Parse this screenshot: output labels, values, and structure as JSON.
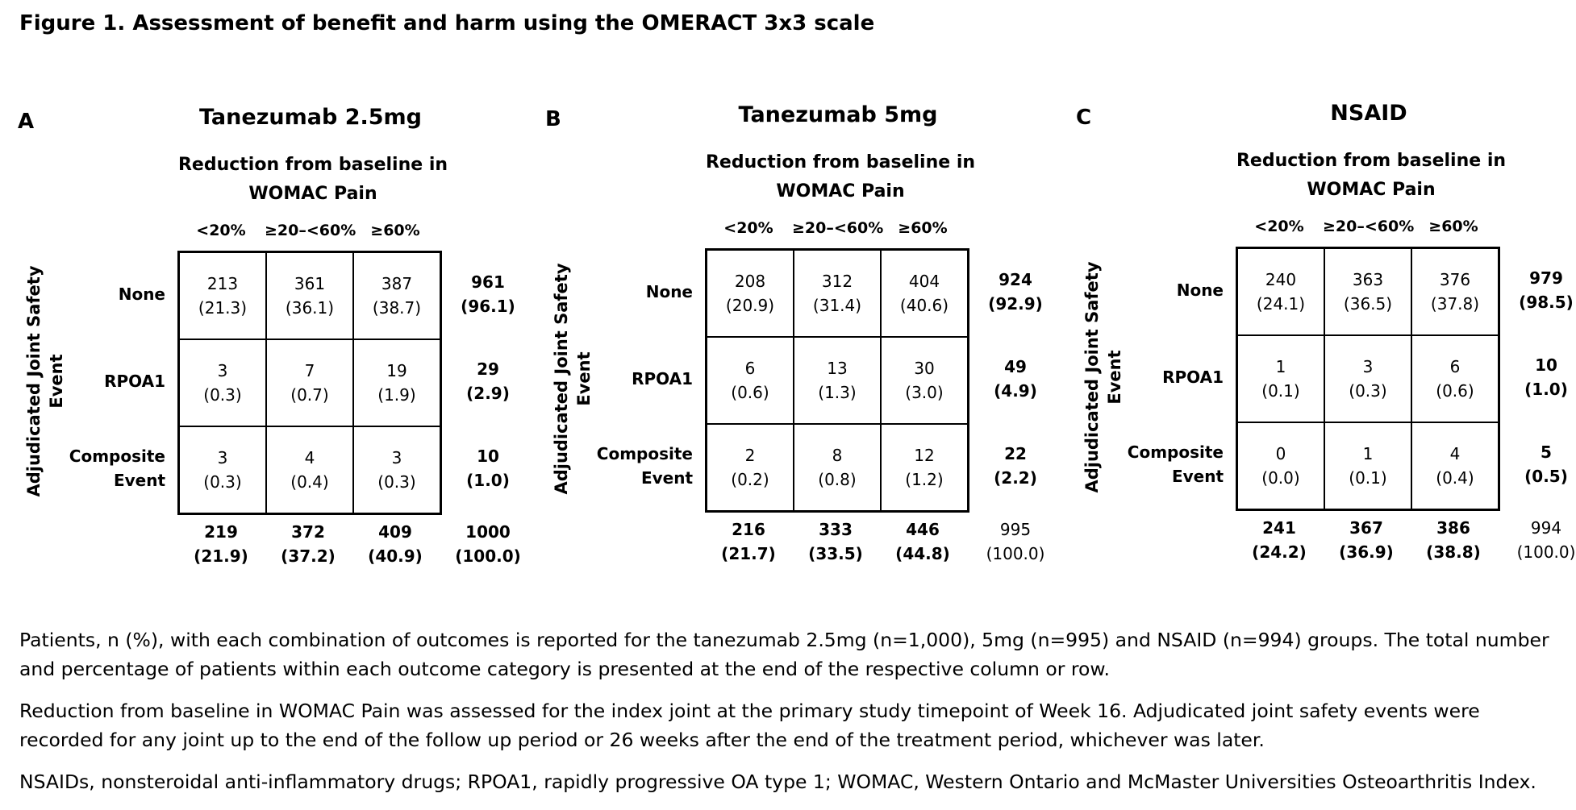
{
  "figure_title": "Figure 1. Assessment of benefit and harm using the OMERACT 3x3 scale",
  "panels": [
    {
      "letter": "A",
      "title": "Tanezumab 2.5mg",
      "subtitle_line1": "Reduction from baseline in",
      "subtitle_line2": "WOMAC Pain",
      "col_heads": [
        "<20%",
        "≥20–<60%",
        "≥60%"
      ],
      "ylabel_line1": "Adjudicated Joint Safety",
      "ylabel_line2": "Event",
      "row_labels": [
        "None",
        "RPOA1",
        "Composite Event"
      ],
      "cells": [
        [
          {
            "n": "213",
            "pct": "(21.3)"
          },
          {
            "n": "361",
            "pct": "(36.1)"
          },
          {
            "n": "387",
            "pct": "(38.7)"
          }
        ],
        [
          {
            "n": "3",
            "pct": "(0.3)"
          },
          {
            "n": "7",
            "pct": "(0.7)"
          },
          {
            "n": "19",
            "pct": "(1.9)"
          }
        ],
        [
          {
            "n": "3",
            "pct": "(0.3)"
          },
          {
            "n": "4",
            "pct": "(0.4)"
          },
          {
            "n": "3",
            "pct": "(0.3)"
          }
        ]
      ],
      "row_totals": [
        {
          "n": "961",
          "pct": "(96.1)"
        },
        {
          "n": "29",
          "pct": "(2.9)"
        },
        {
          "n": "10",
          "pct": "(1.0)"
        }
      ],
      "col_totals": [
        {
          "n": "219",
          "pct": "(21.9)"
        },
        {
          "n": "372",
          "pct": "(37.2)"
        },
        {
          "n": "409",
          "pct": "(40.9)"
        }
      ],
      "grand_total": {
        "n": "1000",
        "pct": "(100.0)"
      }
    },
    {
      "letter": "B",
      "title": "Tanezumab 5mg",
      "subtitle_line1": "Reduction from baseline in",
      "subtitle_line2": "WOMAC Pain",
      "col_heads": [
        "<20%",
        "≥20–<60%",
        "≥60%"
      ],
      "ylabel_line1": "Adjudicated Joint Safety",
      "ylabel_line2": "Event",
      "row_labels": [
        "None",
        "RPOA1",
        "Composite Event"
      ],
      "cells": [
        [
          {
            "n": "208",
            "pct": "(20.9)"
          },
          {
            "n": "312",
            "pct": "(31.4)"
          },
          {
            "n": "404",
            "pct": "(40.6)"
          }
        ],
        [
          {
            "n": "6",
            "pct": "(0.6)"
          },
          {
            "n": "13",
            "pct": "(1.3)"
          },
          {
            "n": "30",
            "pct": "(3.0)"
          }
        ],
        [
          {
            "n": "2",
            "pct": "(0.2)"
          },
          {
            "n": "8",
            "pct": "(0.8)"
          },
          {
            "n": "12",
            "pct": "(1.2)"
          }
        ]
      ],
      "row_totals": [
        {
          "n": "924",
          "pct": "(92.9)"
        },
        {
          "n": "49",
          "pct": "(4.9)"
        },
        {
          "n": "22",
          "pct": "(2.2)"
        }
      ],
      "col_totals": [
        {
          "n": "216",
          "pct": "(21.7)"
        },
        {
          "n": "333",
          "pct": "(33.5)"
        },
        {
          "n": "446",
          "pct": "(44.8)"
        }
      ],
      "grand_total": {
        "n": "995",
        "pct": "(100.0)"
      }
    },
    {
      "letter": "C",
      "title": "NSAID",
      "subtitle_line1": "Reduction from baseline in",
      "subtitle_line2": "WOMAC Pain",
      "col_heads": [
        "<20%",
        "≥20–<60%",
        "≥60%"
      ],
      "ylabel_line1": "Adjudicated Joint Safety",
      "ylabel_line2": "Event",
      "row_labels": [
        "None",
        "RPOA1",
        "Composite Event"
      ],
      "cells": [
        [
          {
            "n": "240",
            "pct": "(24.1)"
          },
          {
            "n": "363",
            "pct": "(36.5)"
          },
          {
            "n": "376",
            "pct": "(37.8)"
          }
        ],
        [
          {
            "n": "1",
            "pct": "(0.1)"
          },
          {
            "n": "3",
            "pct": "(0.3)"
          },
          {
            "n": "6",
            "pct": "(0.6)"
          }
        ],
        [
          {
            "n": "0",
            "pct": "(0.0)"
          },
          {
            "n": "1",
            "pct": "(0.1)"
          },
          {
            "n": "4",
            "pct": "(0.4)"
          }
        ]
      ],
      "row_totals": [
        {
          "n": "979",
          "pct": "(98.5)"
        },
        {
          "n": "10",
          "pct": "(1.0)"
        },
        {
          "n": "5",
          "pct": "(0.5)"
        }
      ],
      "col_totals": [
        {
          "n": "241",
          "pct": "(24.2)"
        },
        {
          "n": "367",
          "pct": "(36.9)"
        },
        {
          "n": "386",
          "pct": "(38.8)"
        }
      ],
      "grand_total": {
        "n": "994",
        "pct": "(100.0)"
      }
    }
  ],
  "notes": [
    "Patients, n (%), with each combination of outcomes is reported for the tanezumab 2.5mg (n=1,000), 5mg (n=995) and NSAID (n=994) groups. The total number and percentage of patients within each outcome category is presented at the end of the respective column or row.",
    "Reduction from baseline in WOMAC Pain was assessed for the index joint at the primary study timepoint of Week 16. Adjudicated joint safety events were recorded for any joint up to the end of the follow up period or 26 weeks after the end of the treatment period, whichever was later.",
    "NSAIDs, nonsteroidal anti-inflammatory drugs; RPOA1, rapidly progressive OA type 1; WOMAC, Western Ontario and McMaster Universities Osteoarthritis Index."
  ]
}
